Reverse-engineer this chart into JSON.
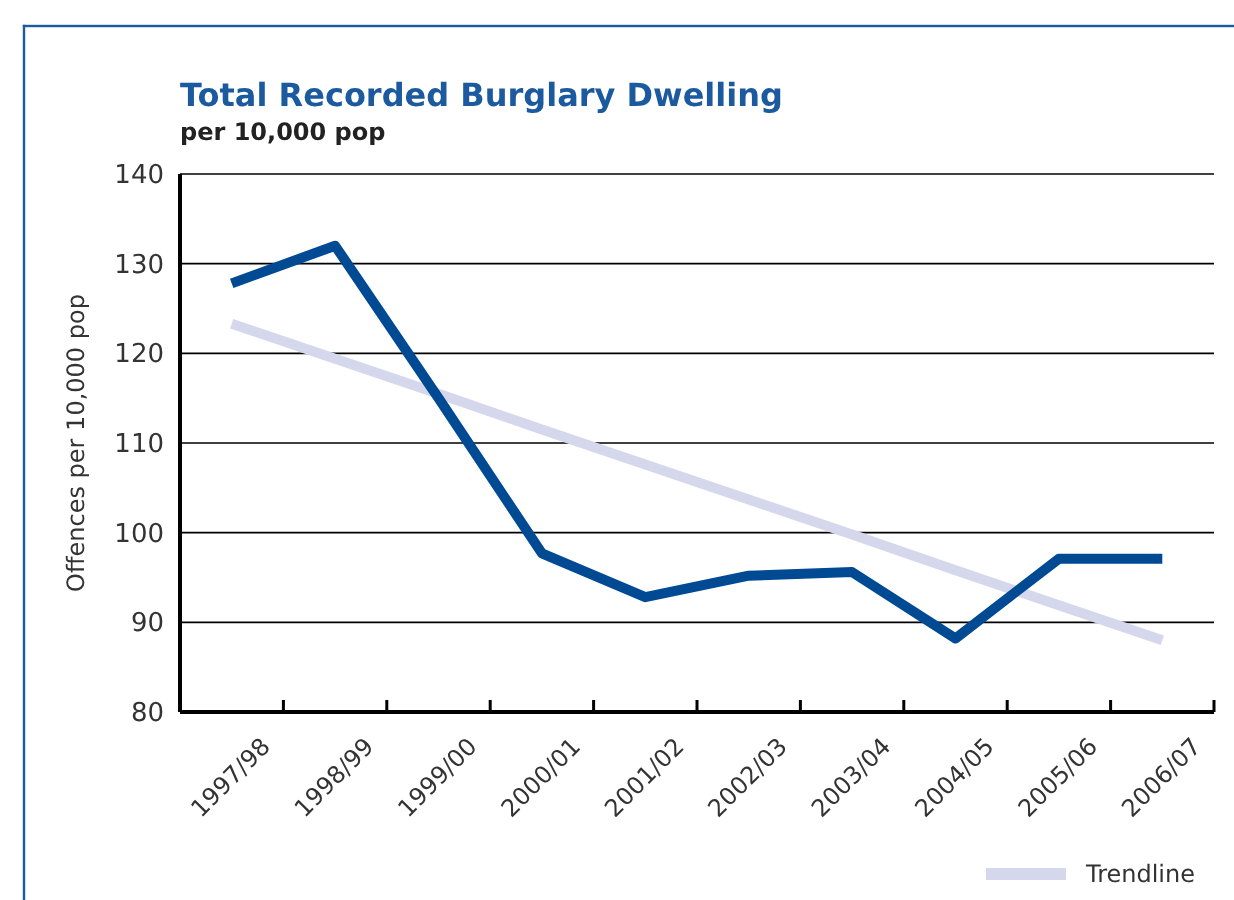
{
  "chart_data": {
    "type": "line",
    "title": "Total Recorded Burglary Dwelling",
    "subtitle": "per 10,000 pop",
    "ylabel": "Offences per 10,000 pop",
    "categories": [
      "1997/98",
      "1998/99",
      "1999/00",
      "2000/01",
      "2001/02",
      "2002/03",
      "2003/04",
      "2004/05",
      "2005/06",
      "2006/07"
    ],
    "series": [
      {
        "name": "Trendline",
        "color": "#d5d8ec",
        "values": [
          123.3,
          119.4,
          115.5,
          111.5,
          107.6,
          103.7,
          99.8,
          95.8,
          91.9,
          88.0
        ]
      },
      {
        "color": "#004a93",
        "values": [
          127.8,
          132,
          115,
          97.7,
          92.8,
          95.2,
          95.6,
          88.2,
          97.1,
          97.1
        ]
      }
    ],
    "ylim": [
      80,
      140
    ],
    "yticks": [
      80,
      90,
      100,
      110,
      120,
      130,
      140
    ],
    "grid": "y",
    "legend": "bottom right",
    "marker": "none",
    "line_style": "solid"
  }
}
